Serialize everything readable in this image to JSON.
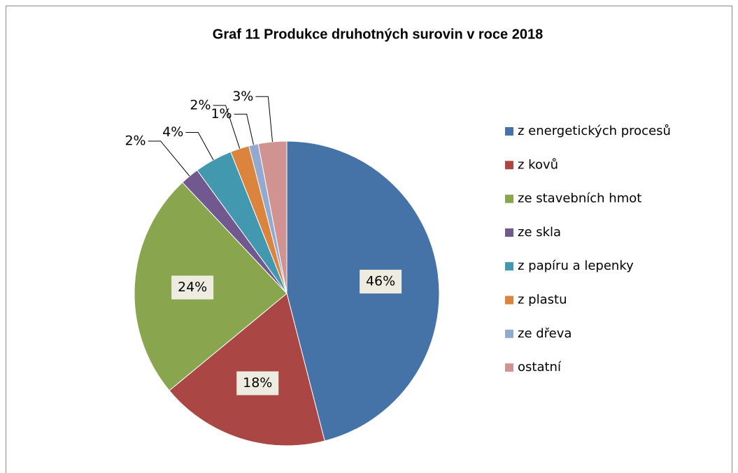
{
  "chart_data": {
    "type": "pie",
    "title": "Graf 11 Produkce druhotných surovin v roce 2018",
    "categories": [
      "z energetických procesů",
      "z kovů",
      "ze stavebních hmot",
      "ze skla",
      "z papíru a lepenky",
      "z plastu",
      "ze dřeva",
      "ostatní"
    ],
    "values": [
      46,
      18,
      24,
      2,
      4,
      2,
      1,
      3
    ],
    "value_labels": [
      "46%",
      "18%",
      "24%",
      "2%",
      "4%",
      "2%",
      "1%",
      "3%"
    ],
    "colors": [
      "#4572a7",
      "#aa4643",
      "#89a54e",
      "#71588f",
      "#4198af",
      "#db843d",
      "#93a9cf",
      "#d19392"
    ],
    "legend": "right"
  }
}
